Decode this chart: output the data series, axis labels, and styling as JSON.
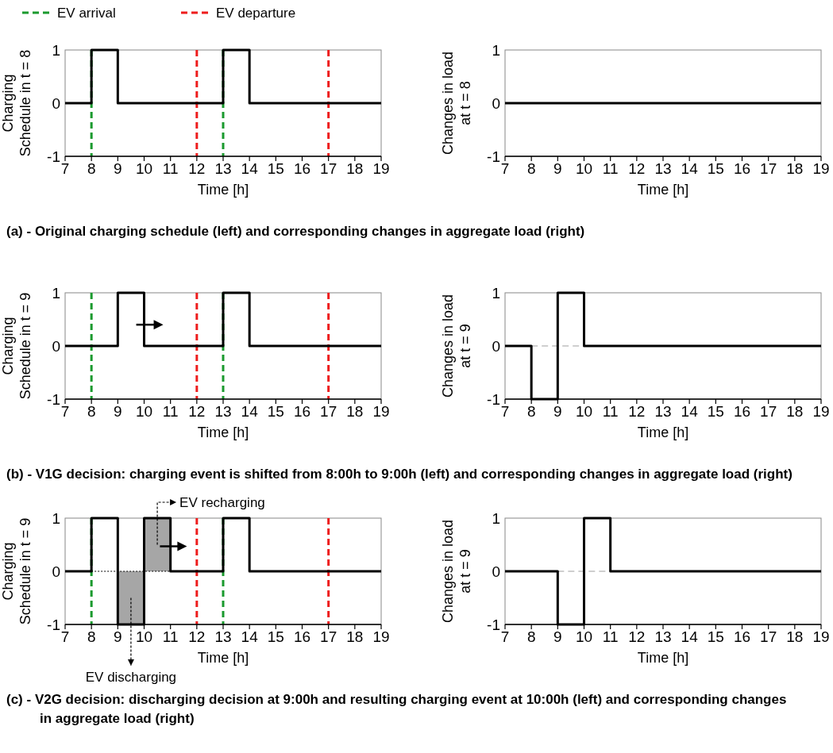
{
  "chart_data": [
    {
      "type": "step",
      "xlabel": "Time [h]",
      "ylabel": "Charging\nSchedule in t = 8",
      "xlim": [
        7,
        19
      ],
      "ylim": [
        -1,
        1
      ],
      "xticks": [
        7,
        8,
        9,
        10,
        11,
        12,
        13,
        14,
        15,
        16,
        17,
        18,
        19
      ],
      "yticks": [
        -1,
        0,
        1
      ],
      "grid": false,
      "legend": "top",
      "series": [
        {
          "color": "#000000",
          "x": [
            7,
            8,
            9,
            13,
            14,
            19
          ],
          "values": [
            0,
            1,
            0,
            1,
            0,
            0
          ]
        }
      ],
      "ref_lines": [
        {
          "axis": "x",
          "value": 8,
          "label": "EV arrival",
          "color": "#1a9a2e",
          "line_style": "dashed"
        },
        {
          "axis": "x",
          "value": 12,
          "label": "EV departure",
          "color": "#ee1c1c",
          "line_style": "dashed"
        },
        {
          "axis": "x",
          "value": 13,
          "color": "#1a9a2e",
          "line_style": "dashed"
        },
        {
          "axis": "x",
          "value": 17,
          "color": "#ee1c1c",
          "line_style": "dashed"
        }
      ],
      "annotations": [
        "(a) - Original charging schedule (left) and corresponding changes in aggregate load (right)"
      ]
    },
    {
      "type": "step",
      "xlabel": "Time [h]",
      "ylabel": "Changes in load\nat t = 8",
      "xlim": [
        7,
        19
      ],
      "ylim": [
        -1,
        1
      ],
      "xticks": [
        7,
        8,
        9,
        10,
        11,
        12,
        13,
        14,
        15,
        16,
        17,
        18,
        19
      ],
      "yticks": [
        -1,
        0,
        1
      ],
      "grid": false,
      "series": [
        {
          "color": "#000000",
          "x": [
            7,
            19
          ],
          "values": [
            0,
            0
          ]
        }
      ]
    },
    {
      "type": "step",
      "xlabel": "Time [h]",
      "ylabel": "Charging\nSchedule in t = 9",
      "xlim": [
        7,
        19
      ],
      "ylim": [
        -1,
        1
      ],
      "xticks": [
        7,
        8,
        9,
        10,
        11,
        12,
        13,
        14,
        15,
        16,
        17,
        18,
        19
      ],
      "yticks": [
        -1,
        0,
        1
      ],
      "grid": false,
      "series": [
        {
          "color": "#000000",
          "x": [
            7,
            9,
            10,
            13,
            14,
            19
          ],
          "values": [
            0,
            1,
            0,
            1,
            0,
            0
          ]
        }
      ],
      "ref_lines": [
        {
          "axis": "x",
          "value": 8,
          "color": "#1a9a2e",
          "line_style": "dashed"
        },
        {
          "axis": "x",
          "value": 12,
          "color": "#ee1c1c",
          "line_style": "dashed"
        },
        {
          "axis": "x",
          "value": 13,
          "color": "#1a9a2e",
          "line_style": "dashed"
        },
        {
          "axis": "x",
          "value": 17,
          "color": "#ee1c1c",
          "line_style": "dashed"
        }
      ],
      "annotations": [
        "(b) - V1G decision: charging event is shifted from 8:00h to 9:00h (left) and corresponding changes in aggregate load (right)"
      ]
    },
    {
      "type": "step",
      "xlabel": "Time [h]",
      "ylabel": "Changes in load\nat t = 9",
      "xlim": [
        7,
        19
      ],
      "ylim": [
        -1,
        1
      ],
      "xticks": [
        7,
        8,
        9,
        10,
        11,
        12,
        13,
        14,
        15,
        16,
        17,
        18,
        19
      ],
      "yticks": [
        -1,
        0,
        1
      ],
      "grid": false,
      "series": [
        {
          "type": "line",
          "color": "#a0a0a0",
          "line_style": "dashed",
          "x": [
            8,
            10
          ],
          "values": [
            0,
            0
          ]
        },
        {
          "color": "#000000",
          "x": [
            7,
            8,
            9,
            10,
            19
          ],
          "values": [
            0,
            -1,
            1,
            0,
            0
          ]
        }
      ]
    },
    {
      "type": "step",
      "xlabel": "Time [h]",
      "ylabel": "Charging\nSchedule in t = 9",
      "xlim": [
        7,
        19
      ],
      "ylim": [
        -1,
        1
      ],
      "xticks": [
        7,
        8,
        9,
        10,
        11,
        12,
        13,
        14,
        15,
        16,
        17,
        18,
        19
      ],
      "yticks": [
        -1,
        0,
        1
      ],
      "grid": false,
      "series": [
        {
          "type": "bar",
          "color": "#a6a6a6",
          "x": [
            9.5,
            10.5
          ],
          "values": [
            -1,
            1
          ]
        },
        {
          "type": "line",
          "color": "#000000",
          "line_style": "dotted",
          "x": [
            8,
            11
          ],
          "values": [
            0,
            0
          ]
        },
        {
          "color": "#000000",
          "x": [
            7,
            8,
            9,
            10,
            11,
            13,
            14,
            19
          ],
          "values": [
            0,
            1,
            -1,
            1,
            0,
            1,
            0,
            0
          ]
        }
      ],
      "ref_lines": [
        {
          "axis": "x",
          "value": 8,
          "color": "#1a9a2e",
          "line_style": "dashed"
        },
        {
          "axis": "x",
          "value": 12,
          "color": "#ee1c1c",
          "line_style": "dashed"
        },
        {
          "axis": "x",
          "value": 13,
          "color": "#1a9a2e",
          "line_style": "dashed"
        },
        {
          "axis": "x",
          "value": 17,
          "color": "#ee1c1c",
          "line_style": "dashed"
        }
      ],
      "annotations": [
        "EV recharging",
        "EV discharging",
        "(c) - V2G decision: discharging decision at 9:00h and resulting charging event at 10:00h (left) and corresponding changes in aggregate load (right)"
      ]
    },
    {
      "type": "step",
      "xlabel": "Time [h]",
      "ylabel": "Changes in load\nat t = 9",
      "xlim": [
        7,
        19
      ],
      "ylim": [
        -1,
        1
      ],
      "xticks": [
        7,
        8,
        9,
        10,
        11,
        12,
        13,
        14,
        15,
        16,
        17,
        18,
        19
      ],
      "yticks": [
        -1,
        0,
        1
      ],
      "grid": false,
      "series": [
        {
          "type": "line",
          "color": "#a0a0a0",
          "line_style": "dashed",
          "x": [
            9,
            11
          ],
          "values": [
            0,
            0
          ]
        },
        {
          "color": "#000000",
          "x": [
            7,
            9,
            10,
            11,
            19
          ],
          "values": [
            0,
            -1,
            1,
            0,
            0
          ]
        }
      ]
    }
  ]
}
